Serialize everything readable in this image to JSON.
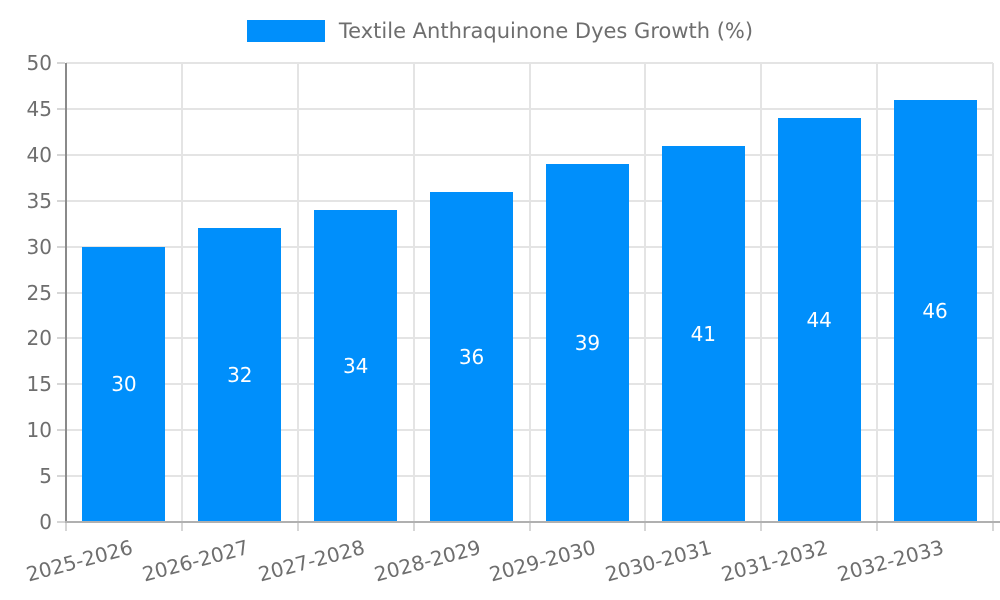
{
  "legend": {
    "label": "Textile Anthraquinone Dyes Growth (%)"
  },
  "chart_data": {
    "type": "bar",
    "title": "Textile Anthraquinone Dyes Growth (%)",
    "categories": [
      "2025-2026",
      "2026-2027",
      "2027-2028",
      "2028-2029",
      "2029-2030",
      "2030-2031",
      "2031-2032",
      "2032-2033"
    ],
    "values": [
      30,
      32,
      34,
      36,
      39,
      41,
      44,
      46
    ],
    "xlabel": "",
    "ylabel": "",
    "ylim": [
      0,
      50
    ],
    "ytick_step": 5,
    "yticks": [
      "0",
      "5",
      "10",
      "15",
      "20",
      "25",
      "30",
      "35",
      "40",
      "45",
      "50"
    ],
    "grid": true,
    "legend_position": "top-center",
    "bar_label_position": "center-inside",
    "colors": {
      "bar": "#008FFB",
      "bar_value_text": "#ffffff",
      "axis_text": "#6e6e6e",
      "gridline": "#e4e4e4",
      "tick_line": "#d6d6d6",
      "y_axis_line": "#8a8a8a",
      "x_axis_line": "#b0b0b0",
      "background": "#ffffff"
    }
  }
}
